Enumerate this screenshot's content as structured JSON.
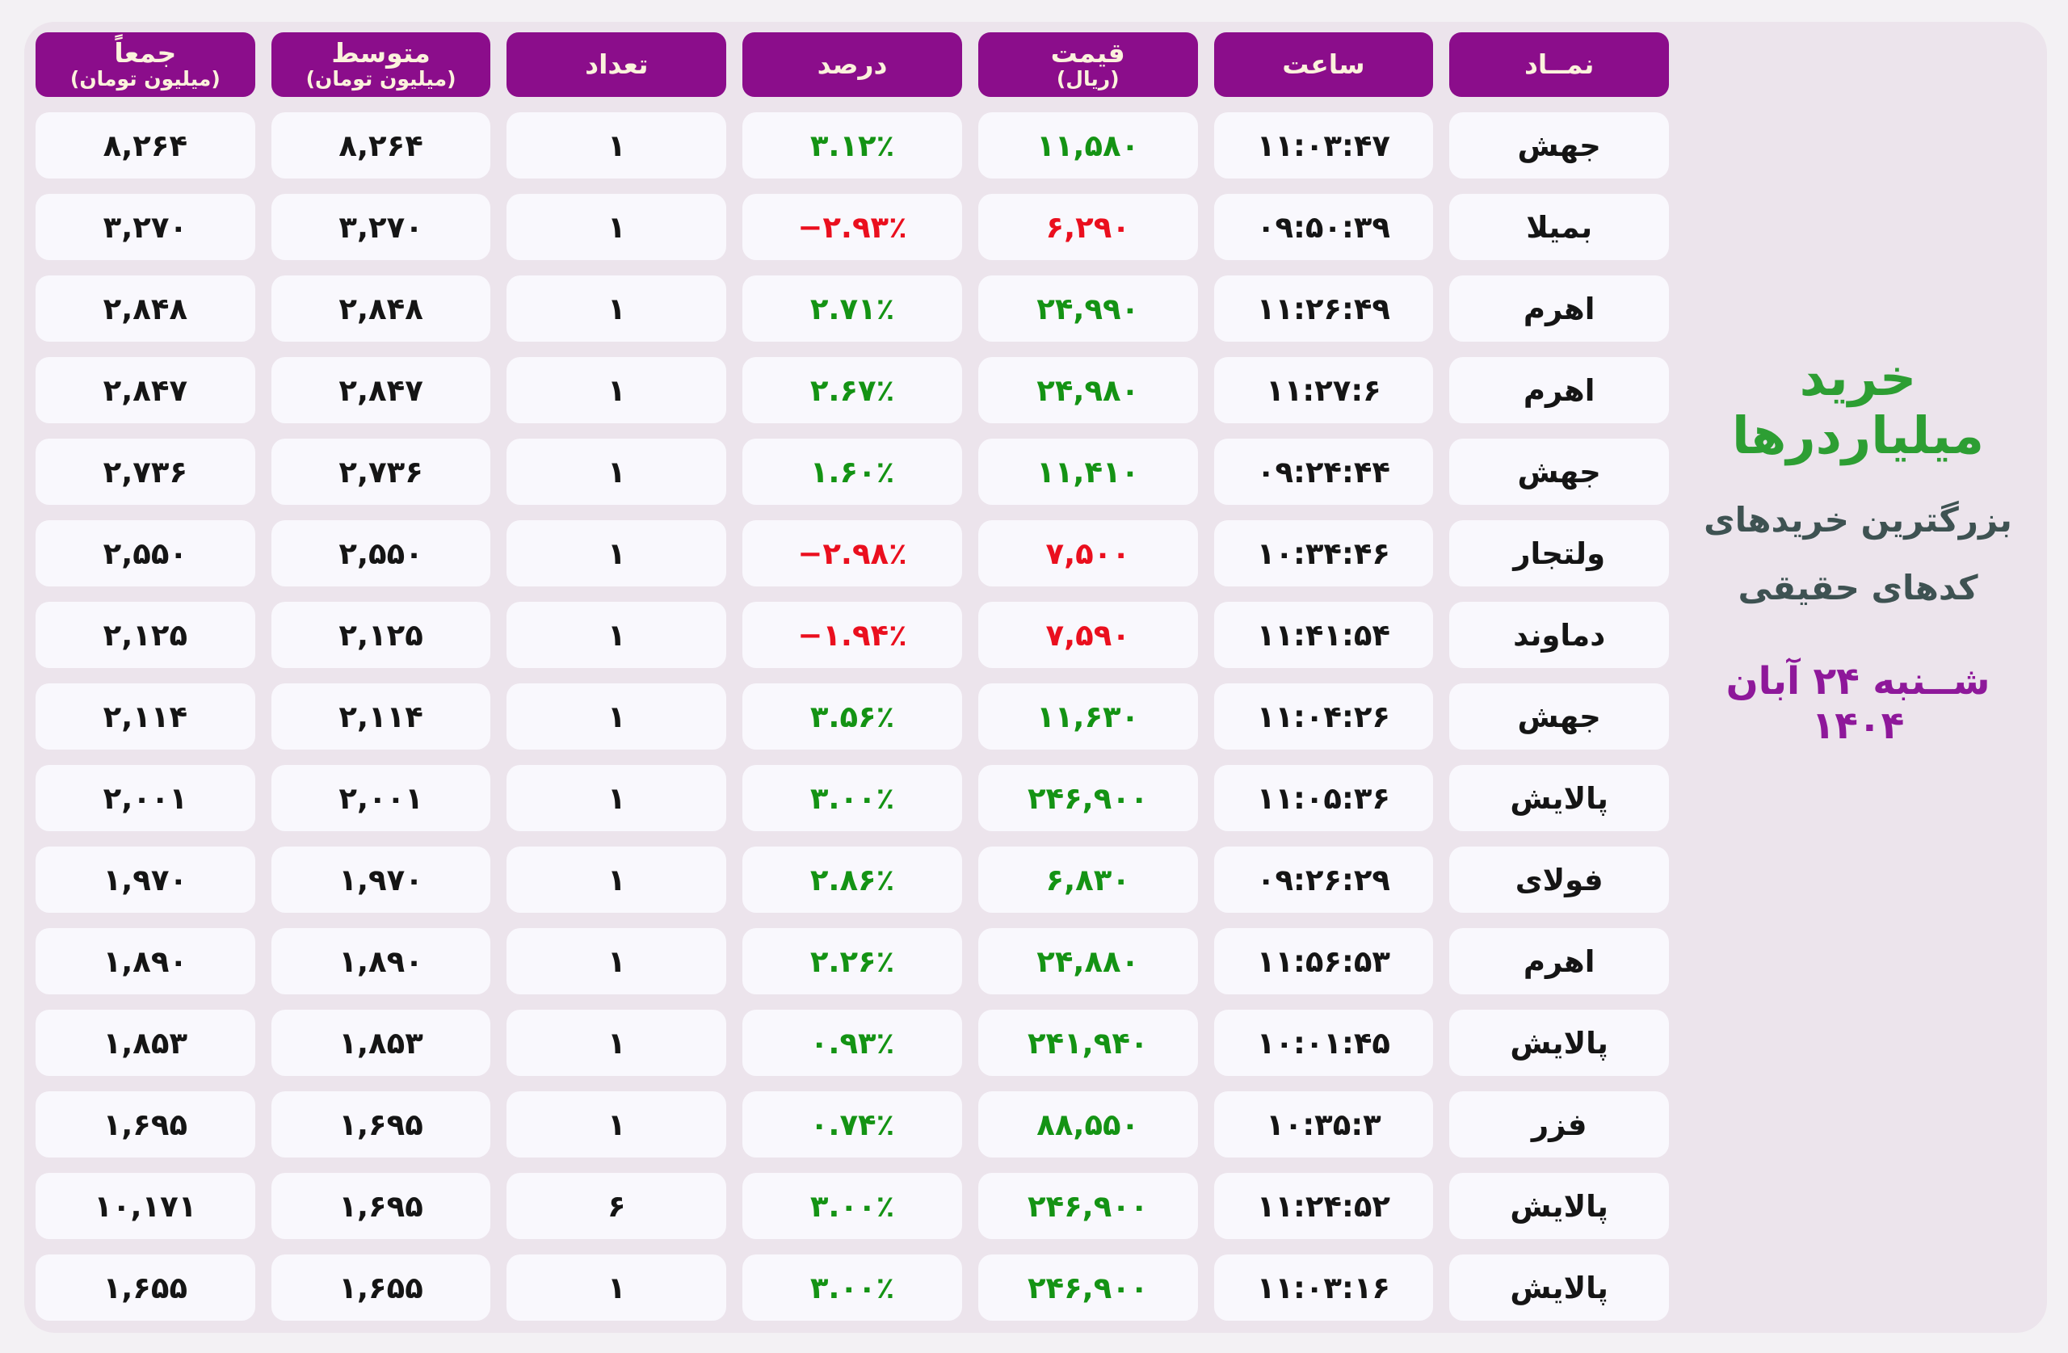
{
  "colors": {
    "page-bg": "#f3f1f4",
    "panel-bg": "#ece4ec",
    "cell-bg": "#f9f8fd",
    "header-purple": "#8b0d8b",
    "header-text": "#fbf2dc",
    "value-black": "#151515",
    "up-green": "#149314",
    "down-red": "#ea0f1e",
    "title-green": "#2d9e33",
    "subtitle-slate": "#3e5252",
    "date-purple": "#8e189a"
  },
  "title_block": {
    "title": "خرید میلیاردرها",
    "subtitle_line1": "بزرگترین خریدهای",
    "subtitle_line2": "کدهای حقیقی",
    "date": "شــنبه ۲۴ آبان ۱۴۰۴"
  },
  "table": {
    "headers": {
      "symbol": {
        "label": "نمــاد"
      },
      "time": {
        "label": "ساعت"
      },
      "price": {
        "label": "قیمت",
        "sub": "(ریال)"
      },
      "percent": {
        "label": "درصد"
      },
      "count": {
        "label": "تعداد"
      },
      "average": {
        "label": "متوسط",
        "sub": "(میلیون تومان)"
      },
      "total": {
        "label": "جمعاً",
        "sub": "(میلیون تومان)"
      }
    },
    "rows": [
      {
        "symbol": "جهش",
        "time": "۱۱:۰۳:۴۷",
        "price": "۱۱,۵۸۰",
        "percent": "۳.۱۲٪",
        "count": "۱",
        "average": "۸,۲۶۴",
        "total": "۸,۲۶۴",
        "trend": "up"
      },
      {
        "symbol": "بمیلا",
        "time": "۰۹:۵۰:۳۹",
        "price": "۶,۲۹۰",
        "percent": "−۲.۹۳٪",
        "count": "۱",
        "average": "۳,۲۷۰",
        "total": "۳,۲۷۰",
        "trend": "down"
      },
      {
        "symbol": "اهرم",
        "time": "۱۱:۲۶:۴۹",
        "price": "۲۴,۹۹۰",
        "percent": "۲.۷۱٪",
        "count": "۱",
        "average": "۲,۸۴۸",
        "total": "۲,۸۴۸",
        "trend": "up"
      },
      {
        "symbol": "اهرم",
        "time": "۱۱:۲۷:۶",
        "price": "۲۴,۹۸۰",
        "percent": "۲.۶۷٪",
        "count": "۱",
        "average": "۲,۸۴۷",
        "total": "۲,۸۴۷",
        "trend": "up"
      },
      {
        "symbol": "جهش",
        "time": "۰۹:۲۴:۴۴",
        "price": "۱۱,۴۱۰",
        "percent": "۱.۶۰٪",
        "count": "۱",
        "average": "۲,۷۳۶",
        "total": "۲,۷۳۶",
        "trend": "up"
      },
      {
        "symbol": "ولتجار",
        "time": "۱۰:۳۴:۴۶",
        "price": "۷,۵۰۰",
        "percent": "−۲.۹۸٪",
        "count": "۱",
        "average": "۲,۵۵۰",
        "total": "۲,۵۵۰",
        "trend": "down"
      },
      {
        "symbol": "دماوند",
        "time": "۱۱:۴۱:۵۴",
        "price": "۷,۵۹۰",
        "percent": "−۱.۹۴٪",
        "count": "۱",
        "average": "۲,۱۲۵",
        "total": "۲,۱۲۵",
        "trend": "down"
      },
      {
        "symbol": "جهش",
        "time": "۱۱:۰۴:۲۶",
        "price": "۱۱,۶۳۰",
        "percent": "۳.۵۶٪",
        "count": "۱",
        "average": "۲,۱۱۴",
        "total": "۲,۱۱۴",
        "trend": "up"
      },
      {
        "symbol": "پالایش",
        "time": "۱۱:۰۵:۳۶",
        "price": "۲۴۶,۹۰۰",
        "percent": "۳.۰۰٪",
        "count": "۱",
        "average": "۲,۰۰۱",
        "total": "۲,۰۰۱",
        "trend": "up"
      },
      {
        "symbol": "فولای",
        "time": "۰۹:۲۶:۲۹",
        "price": "۶,۸۳۰",
        "percent": "۲.۸۶٪",
        "count": "۱",
        "average": "۱,۹۷۰",
        "total": "۱,۹۷۰",
        "trend": "up"
      },
      {
        "symbol": "اهرم",
        "time": "۱۱:۵۶:۵۳",
        "price": "۲۴,۸۸۰",
        "percent": "۲.۲۶٪",
        "count": "۱",
        "average": "۱,۸۹۰",
        "total": "۱,۸۹۰",
        "trend": "up"
      },
      {
        "symbol": "پالایش",
        "time": "۱۰:۰۱:۴۵",
        "price": "۲۴۱,۹۴۰",
        "percent": "۰.۹۳٪",
        "count": "۱",
        "average": "۱,۸۵۳",
        "total": "۱,۸۵۳",
        "trend": "up"
      },
      {
        "symbol": "فزر",
        "time": "۱۰:۳۵:۳",
        "price": "۸۸,۵۵۰",
        "percent": "۰.۷۴٪",
        "count": "۱",
        "average": "۱,۶۹۵",
        "total": "۱,۶۹۵",
        "trend": "up"
      },
      {
        "symbol": "پالایش",
        "time": "۱۱:۲۴:۵۲",
        "price": "۲۴۶,۹۰۰",
        "percent": "۳.۰۰٪",
        "count": "۶",
        "average": "۱,۶۹۵",
        "total": "۱۰,۱۷۱",
        "trend": "up"
      },
      {
        "symbol": "پالایش",
        "time": "۱۱:۰۳:۱۶",
        "price": "۲۴۶,۹۰۰",
        "percent": "۳.۰۰٪",
        "count": "۱",
        "average": "۱,۶۵۵",
        "total": "۱,۶۵۵",
        "trend": "up"
      }
    ]
  },
  "chart_data": {
    "type": "table",
    "title": "خرید میلیاردرها",
    "subtitle": "بزرگترین خریدهای کدهای حقیقی",
    "date": "شنبه ۲۴ آبان ۱۴۰۴",
    "columns_rtl": [
      "نمــاد",
      "ساعت",
      "قیمت (ریال)",
      "درصد",
      "تعداد",
      "متوسط (میلیون تومان)",
      "جمعاً (میلیون تومان)"
    ],
    "rows": [
      {
        "symbol": "جهش",
        "time": "11:03:47",
        "price_rial": 11580,
        "percent": 3.12,
        "count": 1,
        "avg_m_toman": 8264,
        "total_m_toman": 8264
      },
      {
        "symbol": "بمیلا",
        "time": "09:50:39",
        "price_rial": 6290,
        "percent": -2.93,
        "count": 1,
        "avg_m_toman": 3270,
        "total_m_toman": 3270
      },
      {
        "symbol": "اهرم",
        "time": "11:26:49",
        "price_rial": 24990,
        "percent": 2.71,
        "count": 1,
        "avg_m_toman": 2848,
        "total_m_toman": 2848
      },
      {
        "symbol": "اهرم",
        "time": "11:27:6",
        "price_rial": 24980,
        "percent": 2.67,
        "count": 1,
        "avg_m_toman": 2847,
        "total_m_toman": 2847
      },
      {
        "symbol": "جهش",
        "time": "09:24:44",
        "price_rial": 11410,
        "percent": 1.6,
        "count": 1,
        "avg_m_toman": 2736,
        "total_m_toman": 2736
      },
      {
        "symbol": "ولتجار",
        "time": "10:34:46",
        "price_rial": 7500,
        "percent": -2.98,
        "count": 1,
        "avg_m_toman": 2550,
        "total_m_toman": 2550
      },
      {
        "symbol": "دماوند",
        "time": "11:41:54",
        "price_rial": 7590,
        "percent": -1.94,
        "count": 1,
        "avg_m_toman": 2125,
        "total_m_toman": 2125
      },
      {
        "symbol": "جهش",
        "time": "11:04:26",
        "price_rial": 11630,
        "percent": 3.56,
        "count": 1,
        "avg_m_toman": 2114,
        "total_m_toman": 2114
      },
      {
        "symbol": "پالایش",
        "time": "11:05:36",
        "price_rial": 246900,
        "percent": 3.0,
        "count": 1,
        "avg_m_toman": 2001,
        "total_m_toman": 2001
      },
      {
        "symbol": "فولای",
        "time": "09:26:29",
        "price_rial": 6830,
        "percent": 2.86,
        "count": 1,
        "avg_m_toman": 1970,
        "total_m_toman": 1970
      },
      {
        "symbol": "اهرم",
        "time": "11:56:53",
        "price_rial": 24880,
        "percent": 2.26,
        "count": 1,
        "avg_m_toman": 1890,
        "total_m_toman": 1890
      },
      {
        "symbol": "پالایش",
        "time": "10:01:45",
        "price_rial": 241940,
        "percent": 0.93,
        "count": 1,
        "avg_m_toman": 1853,
        "total_m_toman": 1853
      },
      {
        "symbol": "فزر",
        "time": "10:35:3",
        "price_rial": 88550,
        "percent": 0.74,
        "count": 1,
        "avg_m_toman": 1695,
        "total_m_toman": 1695
      },
      {
        "symbol": "پالایش",
        "time": "11:24:52",
        "price_rial": 246900,
        "percent": 3.0,
        "count": 6,
        "avg_m_toman": 1695,
        "total_m_toman": 10171
      },
      {
        "symbol": "پالایش",
        "time": "11:03:16",
        "price_rial": 246900,
        "percent": 3.0,
        "count": 1,
        "avg_m_toman": 1655,
        "total_m_toman": 1655
      }
    ]
  }
}
